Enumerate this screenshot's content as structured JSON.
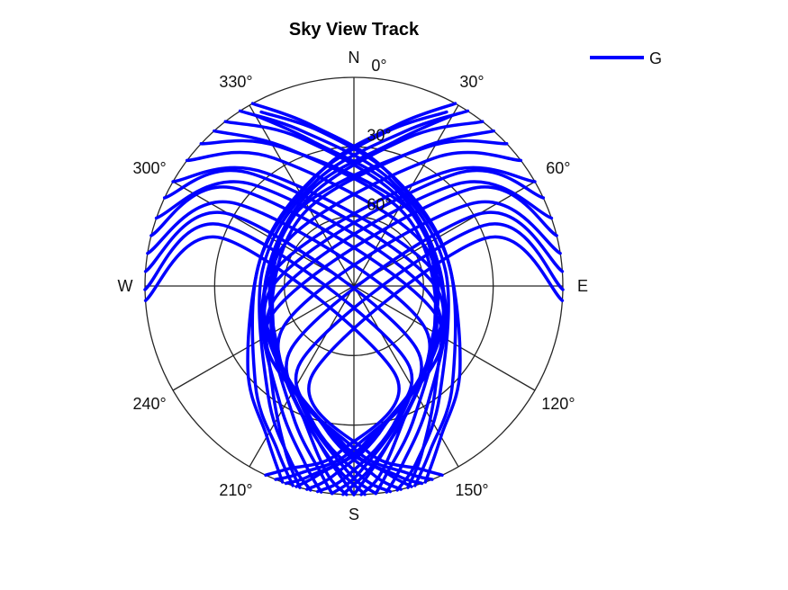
{
  "chart_data": {
    "type": "line",
    "title": "Sky View Track",
    "projection": "polar-skyplot",
    "color": "#0000ff",
    "elevation_ticks": [
      "0°",
      "30°",
      "60°"
    ],
    "elevation_rings_deg": [
      0,
      30,
      60
    ],
    "azimuth_spokes_deg": [
      0,
      30,
      60,
      90,
      120,
      150,
      180,
      210,
      240,
      270,
      300,
      330
    ],
    "azimuth_labels": [
      "N",
      "30°",
      "60°",
      "E",
      "120°",
      "150°",
      "S",
      "210°",
      "240°",
      "W",
      "300°",
      "330°"
    ],
    "legend": {
      "label": "G",
      "position": "top-right"
    },
    "series": [
      {
        "name": "G",
        "tracks": [
          [
            [
              332,
              5
            ],
            [
              348,
              22
            ],
            [
              20,
              40
            ],
            [
              70,
              48
            ],
            [
              128,
              32
            ],
            [
              150,
              15
            ],
            [
              160,
              0
            ]
          ],
          [
            [
              331,
              0
            ],
            [
              345,
              18
            ],
            [
              15,
              38
            ],
            [
              75,
              48
            ],
            [
              135,
              30
            ],
            [
              155,
              12
            ],
            [
              163,
              0
            ]
          ],
          [
            [
              330,
              5
            ],
            [
              344,
              25
            ],
            [
              25,
              45
            ],
            [
              85,
              52
            ],
            [
              140,
              35
            ],
            [
              158,
              12
            ],
            [
              165,
              0
            ]
          ],
          [
            [
              327,
              0
            ],
            [
              342,
              20
            ],
            [
              20,
              42
            ],
            [
              80,
              50
            ],
            [
              142,
              30
            ],
            [
              160,
              10
            ],
            [
              168,
              0
            ]
          ],
          [
            [
              322,
              0
            ],
            [
              340,
              22
            ],
            [
              30,
              48
            ],
            [
              100,
              50
            ],
            [
              148,
              30
            ],
            [
              165,
              10
            ],
            [
              171,
              0
            ]
          ],
          [
            [
              318,
              0
            ],
            [
              335,
              25
            ],
            [
              35,
              52
            ],
            [
              110,
              52
            ],
            [
              155,
              28
            ],
            [
              170,
              8
            ],
            [
              174,
              0
            ]
          ],
          [
            [
              313,
              0
            ],
            [
              332,
              22
            ],
            [
              40,
              50
            ],
            [
              120,
              50
            ],
            [
              160,
              28
            ],
            [
              172,
              8
            ],
            [
              178,
              0
            ]
          ],
          [
            [
              307,
              0
            ],
            [
              328,
              25
            ],
            [
              60,
              55
            ],
            [
              135,
              45
            ],
            [
              168,
              20
            ],
            [
              180,
              0
            ]
          ],
          [
            [
              300,
              0
            ],
            [
              322,
              28
            ],
            [
              80,
              55
            ],
            [
              145,
              40
            ],
            [
              172,
              15
            ],
            [
              183,
              0
            ]
          ],
          [
            [
              295,
              0
            ],
            [
              318,
              25
            ],
            [
              90,
              55
            ],
            [
              155,
              35
            ],
            [
              178,
              10
            ],
            [
              186,
              0
            ]
          ],
          [
            [
              289,
              0
            ],
            [
              315,
              28
            ],
            [
              100,
              55
            ],
            [
              162,
              30
            ],
            [
              182,
              8
            ],
            [
              190,
              0
            ]
          ],
          [
            [
              284,
              0
            ],
            [
              310,
              25
            ],
            [
              110,
              52
            ],
            [
              168,
              28
            ],
            [
              186,
              8
            ],
            [
              193,
              0
            ]
          ],
          [
            [
              279,
              0
            ],
            [
              305,
              28
            ],
            [
              120,
              55
            ],
            [
              172,
              25
            ],
            [
              190,
              8
            ],
            [
              196,
              0
            ]
          ],
          [
            [
              274,
              0
            ],
            [
              300,
              28
            ],
            [
              135,
              52
            ],
            [
              176,
              22
            ],
            [
              193,
              6
            ],
            [
              199,
              0
            ]
          ],
          [
            [
              269,
              0
            ],
            [
              295,
              28
            ],
            [
              145,
              50
            ],
            [
              180,
              20
            ],
            [
              196,
              6
            ],
            [
              202,
              0
            ]
          ],
          [
            [
              266,
              0
            ],
            [
              290,
              30
            ],
            [
              155,
              48
            ],
            [
              185,
              18
            ],
            [
              200,
              6
            ],
            [
              205,
              0
            ]
          ],
          [
            [
              28,
              5
            ],
            [
              12,
              22
            ],
            [
              340,
              40
            ],
            [
              290,
              48
            ],
            [
              232,
              32
            ],
            [
              210,
              15
            ],
            [
              200,
              0
            ]
          ],
          [
            [
              29,
              0
            ],
            [
              15,
              18
            ],
            [
              345,
              38
            ],
            [
              285,
              48
            ],
            [
              225,
              30
            ],
            [
              205,
              12
            ],
            [
              197,
              0
            ]
          ],
          [
            [
              30,
              5
            ],
            [
              16,
              25
            ],
            [
              335,
              45
            ],
            [
              275,
              52
            ],
            [
              220,
              35
            ],
            [
              202,
              12
            ],
            [
              195,
              0
            ]
          ],
          [
            [
              33,
              0
            ],
            [
              18,
              20
            ],
            [
              340,
              42
            ],
            [
              280,
              50
            ],
            [
              218,
              30
            ],
            [
              200,
              10
            ],
            [
              192,
              0
            ]
          ],
          [
            [
              38,
              0
            ],
            [
              20,
              22
            ],
            [
              330,
              48
            ],
            [
              260,
              50
            ],
            [
              212,
              30
            ],
            [
              195,
              10
            ],
            [
              189,
              0
            ]
          ],
          [
            [
              42,
              0
            ],
            [
              25,
              25
            ],
            [
              325,
              52
            ],
            [
              250,
              52
            ],
            [
              205,
              28
            ],
            [
              190,
              8
            ],
            [
              186,
              0
            ]
          ],
          [
            [
              47,
              0
            ],
            [
              28,
              22
            ],
            [
              320,
              50
            ],
            [
              240,
              50
            ],
            [
              200,
              28
            ],
            [
              188,
              8
            ],
            [
              182,
              0
            ]
          ],
          [
            [
              53,
              0
            ],
            [
              32,
              25
            ],
            [
              300,
              55
            ],
            [
              225,
              45
            ],
            [
              192,
              20
            ],
            [
              180,
              0
            ]
          ],
          [
            [
              60,
              0
            ],
            [
              38,
              28
            ],
            [
              280,
              55
            ],
            [
              215,
              40
            ],
            [
              188,
              15
            ],
            [
              177,
              0
            ]
          ],
          [
            [
              65,
              0
            ],
            [
              42,
              25
            ],
            [
              270,
              55
            ],
            [
              205,
              35
            ],
            [
              182,
              10
            ],
            [
              174,
              0
            ]
          ],
          [
            [
              71,
              0
            ],
            [
              45,
              28
            ],
            [
              260,
              55
            ],
            [
              198,
              30
            ],
            [
              178,
              8
            ],
            [
              170,
              0
            ]
          ],
          [
            [
              76,
              0
            ],
            [
              50,
              25
            ],
            [
              250,
              52
            ],
            [
              192,
              28
            ],
            [
              174,
              8
            ],
            [
              167,
              0
            ]
          ],
          [
            [
              81,
              0
            ],
            [
              55,
              28
            ],
            [
              240,
              55
            ],
            [
              188,
              25
            ],
            [
              170,
              8
            ],
            [
              164,
              0
            ]
          ],
          [
            [
              86,
              0
            ],
            [
              60,
              28
            ],
            [
              225,
              52
            ],
            [
              184,
              22
            ],
            [
              167,
              6
            ],
            [
              161,
              0
            ]
          ],
          [
            [
              91,
              0
            ],
            [
              65,
              28
            ],
            [
              215,
              50
            ],
            [
              180,
              20
            ],
            [
              164,
              6
            ],
            [
              158,
              0
            ]
          ],
          [
            [
              94,
              0
            ],
            [
              70,
              30
            ],
            [
              205,
              48
            ],
            [
              175,
              18
            ],
            [
              160,
              6
            ],
            [
              155,
              0
            ]
          ]
        ]
      }
    ]
  }
}
